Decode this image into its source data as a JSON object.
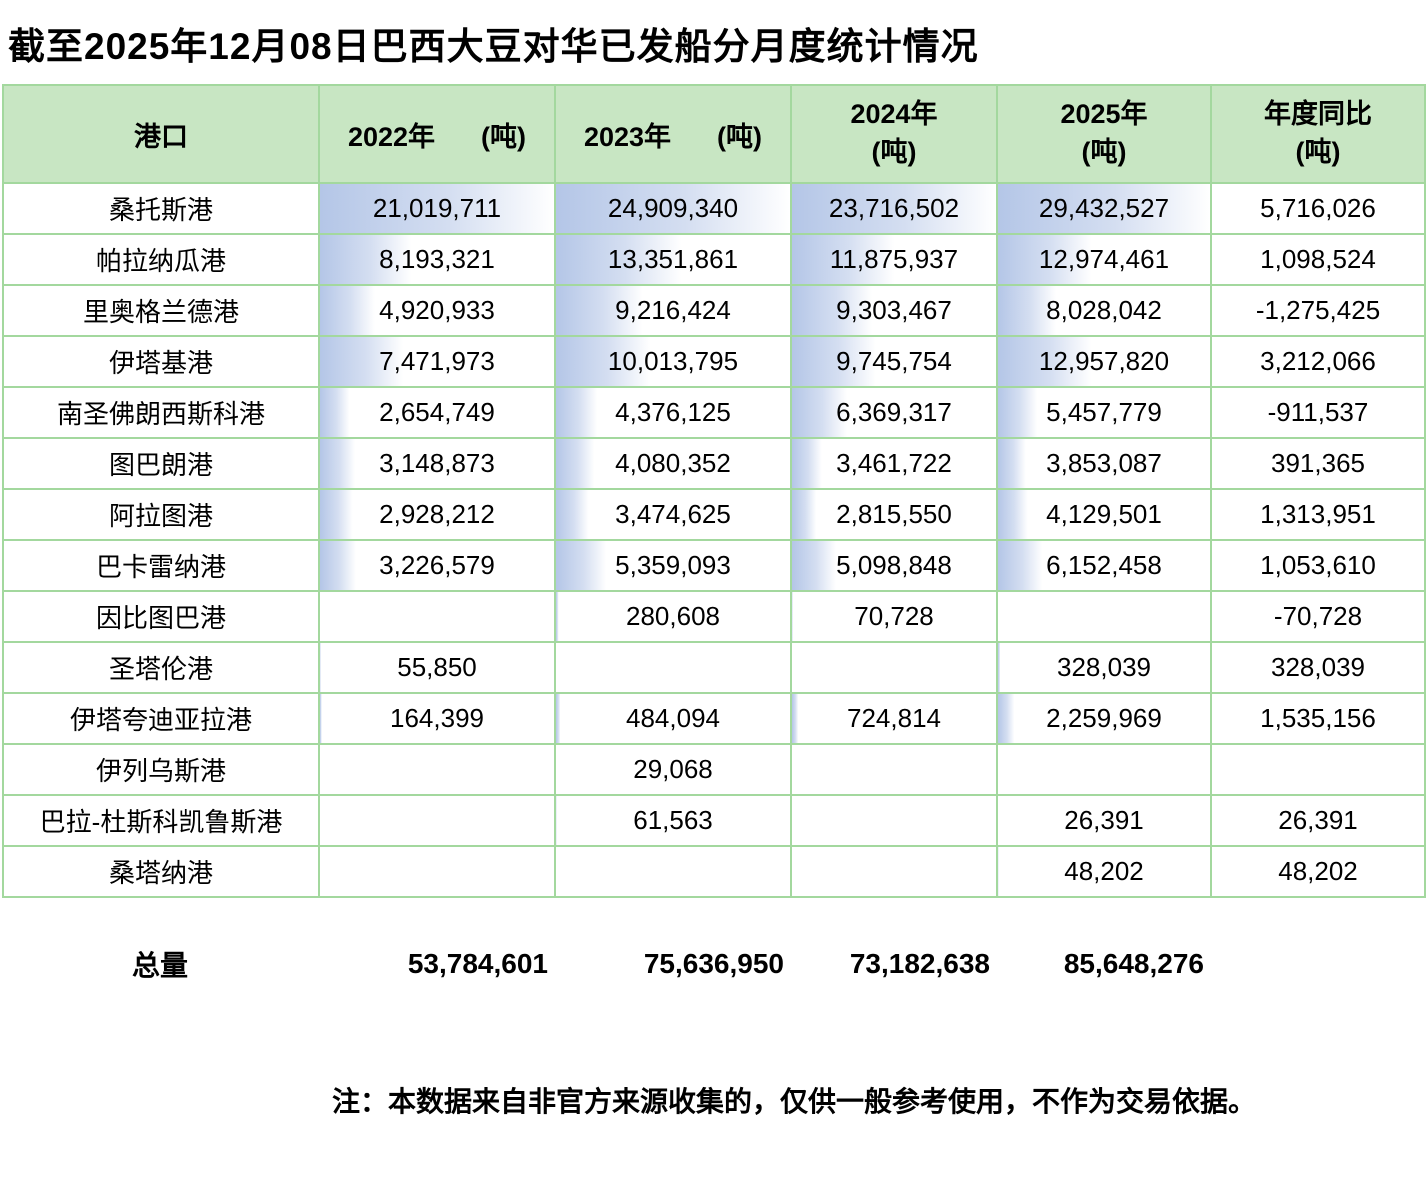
{
  "title": "截至2025年12月08日巴西大豆对华已发船分月度统计情况",
  "colors": {
    "header_bg": "#c8e6c3",
    "grid_border": "#a3d89e",
    "bar": "#b4c6e7",
    "bar_mid": "#d4def1",
    "bar_end": "#ffffff"
  },
  "table": {
    "columns": [
      {
        "label": "港口",
        "unit": ""
      },
      {
        "label": "2022年",
        "unit": "(吨)"
      },
      {
        "label": "2023年",
        "unit": "(吨)"
      },
      {
        "label": "2024年",
        "unit": "(吨)"
      },
      {
        "label": "2025年",
        "unit": "(吨)"
      },
      {
        "label": "年度同比",
        "unit": "(吨)"
      }
    ],
    "rows": [
      {
        "port": "桑托斯港",
        "cells": [
          "21,019,711",
          "24,909,340",
          "23,716,502",
          "29,432,527",
          "5,716,026"
        ]
      },
      {
        "port": "帕拉纳瓜港",
        "cells": [
          "8,193,321",
          "13,351,861",
          "11,875,937",
          "12,974,461",
          "1,098,524"
        ]
      },
      {
        "port": "里奥格兰德港",
        "cells": [
          "4,920,933",
          "9,216,424",
          "9,303,467",
          "8,028,042",
          "-1,275,425"
        ]
      },
      {
        "port": "伊塔基港",
        "cells": [
          "7,471,973",
          "10,013,795",
          "9,745,754",
          "12,957,820",
          "3,212,066"
        ]
      },
      {
        "port": "南圣佛朗西斯科港",
        "cells": [
          "2,654,749",
          "4,376,125",
          "6,369,317",
          "5,457,779",
          "-911,537"
        ]
      },
      {
        "port": "图巴朗港",
        "cells": [
          "3,148,873",
          "4,080,352",
          "3,461,722",
          "3,853,087",
          "391,365"
        ]
      },
      {
        "port": "阿拉图港",
        "cells": [
          "2,928,212",
          "3,474,625",
          "2,815,550",
          "4,129,501",
          "1,313,951"
        ]
      },
      {
        "port": "巴卡雷纳港",
        "cells": [
          "3,226,579",
          "5,359,093",
          "5,098,848",
          "6,152,458",
          "1,053,610"
        ]
      },
      {
        "port": "因比图巴港",
        "cells": [
          "",
          "280,608",
          "70,728",
          "",
          "-70,728"
        ]
      },
      {
        "port": "圣塔伦港",
        "cells": [
          "55,850",
          "",
          "",
          "328,039",
          "328,039"
        ]
      },
      {
        "port": "伊塔夸迪亚拉港",
        "cells": [
          "164,399",
          "484,094",
          "724,814",
          "2,259,969",
          "1,535,156"
        ]
      },
      {
        "port": "伊列乌斯港",
        "cells": [
          "",
          "29,068",
          "",
          "",
          ""
        ]
      },
      {
        "port": "巴拉-杜斯科凯鲁斯港",
        "cells": [
          "",
          "61,563",
          "",
          "26,391",
          "26,391"
        ]
      },
      {
        "port": "桑塔纳港",
        "cells": [
          "",
          "",
          "",
          "48,202",
          "48,202"
        ]
      }
    ]
  },
  "totals": {
    "label": "总量",
    "values": [
      "53,784,601",
      "75,636,950",
      "73,182,638",
      "85,648,276"
    ]
  },
  "note": "注：本数据来自非官方来源收集的，仅供一般参考使用，不作为交易依据。",
  "chart_data": {
    "type": "table",
    "title": "截至2025年12月08日巴西大豆对华已发船分月度统计情况",
    "columns": [
      "港口",
      "2022年 (吨)",
      "2023年 (吨)",
      "2024年 (吨)",
      "2025年 (吨)",
      "年度同比 (吨)"
    ],
    "unit": "吨",
    "rows": [
      {
        "port": "桑托斯港",
        "values": [
          21019711,
          24909340,
          23716502,
          29432527,
          5716026
        ]
      },
      {
        "port": "帕拉纳瓜港",
        "values": [
          8193321,
          13351861,
          11875937,
          12974461,
          1098524
        ]
      },
      {
        "port": "里奥格兰德港",
        "values": [
          4920933,
          9216424,
          9303467,
          8028042,
          -1275425
        ]
      },
      {
        "port": "伊塔基港",
        "values": [
          7471973,
          10013795,
          9745754,
          12957820,
          3212066
        ]
      },
      {
        "port": "南圣佛朗西斯科港",
        "values": [
          2654749,
          4376125,
          6369317,
          5457779,
          -911537
        ]
      },
      {
        "port": "图巴朗港",
        "values": [
          3148873,
          4080352,
          3461722,
          3853087,
          391365
        ]
      },
      {
        "port": "阿拉图港",
        "values": [
          2928212,
          3474625,
          2815550,
          4129501,
          1313951
        ]
      },
      {
        "port": "巴卡雷纳港",
        "values": [
          3226579,
          5359093,
          5098848,
          6152458,
          1053610
        ]
      },
      {
        "port": "因比图巴港",
        "values": [
          null,
          280608,
          70728,
          null,
          -70728
        ]
      },
      {
        "port": "圣塔伦港",
        "values": [
          55850,
          null,
          null,
          328039,
          328039
        ]
      },
      {
        "port": "伊塔夸迪亚拉港",
        "values": [
          164399,
          484094,
          724814,
          2259969,
          1535156
        ]
      },
      {
        "port": "伊列乌斯港",
        "values": [
          null,
          29068,
          null,
          null,
          null
        ]
      },
      {
        "port": "巴拉-杜斯科凯鲁斯港",
        "values": [
          null,
          61563,
          null,
          26391,
          26391
        ]
      },
      {
        "port": "桑塔纳港",
        "values": [
          null,
          null,
          null,
          48202,
          48202
        ]
      }
    ],
    "totals": {
      "label": "总量",
      "values": [
        53784601,
        75636950,
        73182638,
        85648276
      ]
    },
    "layout": {
      "data_bars": "gradient blue bars in year columns, scaled 0 to column max",
      "grid": true
    }
  }
}
